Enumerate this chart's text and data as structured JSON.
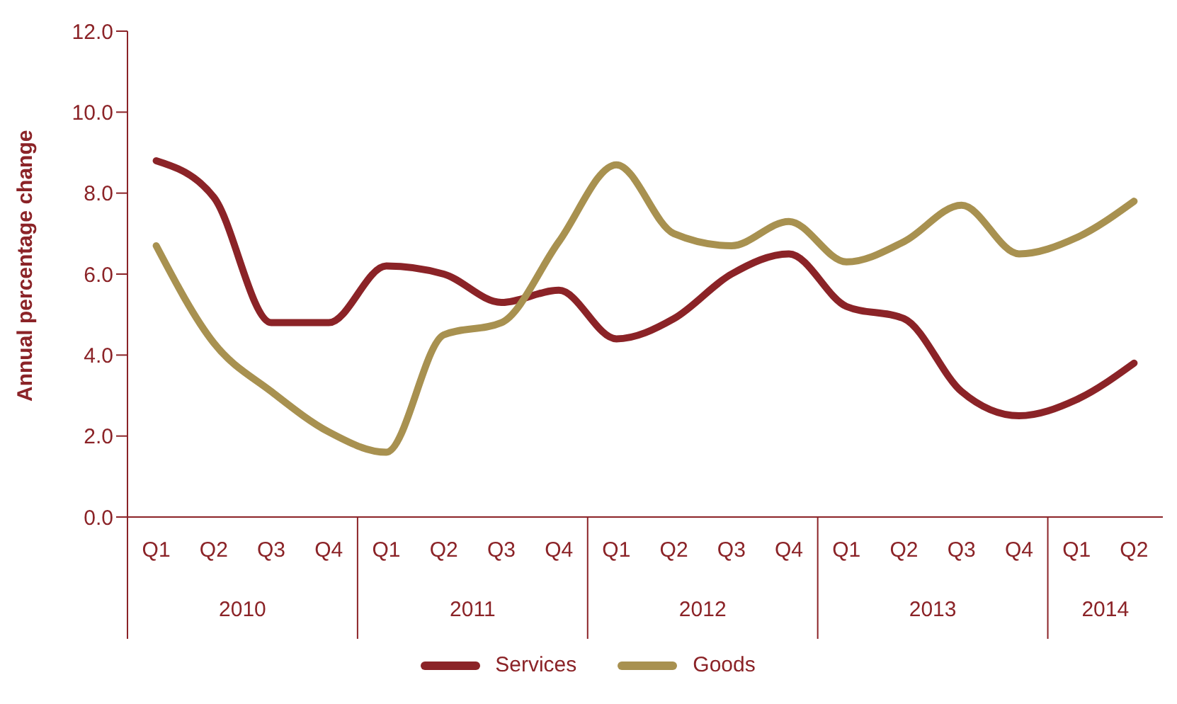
{
  "chart_data": {
    "type": "line",
    "ylabel": "Annual percentage change",
    "categories": [
      "Q1",
      "Q2",
      "Q3",
      "Q4",
      "Q1",
      "Q2",
      "Q3",
      "Q4",
      "Q1",
      "Q2",
      "Q3",
      "Q4",
      "Q1",
      "Q2",
      "Q3",
      "Q4",
      "Q1",
      "Q2"
    ],
    "annotations": [
      "2010",
      "2011",
      "2012",
      "2013",
      "2014"
    ],
    "series": [
      {
        "name": "Services",
        "color": "#8b2327",
        "values": [
          8.8,
          7.9,
          4.8,
          4.8,
          6.2,
          6.0,
          5.3,
          5.6,
          4.4,
          4.9,
          6.0,
          6.5,
          5.2,
          4.9,
          3.1,
          2.5,
          2.9,
          3.8
        ]
      },
      {
        "name": "Goods",
        "color": "#a89150",
        "values": [
          6.7,
          4.3,
          3.1,
          2.1,
          1.6,
          4.5,
          4.8,
          6.8,
          8.7,
          7.0,
          6.7,
          7.3,
          6.3,
          6.8,
          7.7,
          6.5,
          6.9,
          7.8
        ]
      }
    ],
    "ylim": [
      0,
      12
    ],
    "yticks": [
      {
        "value": 0,
        "label": "0.0"
      },
      {
        "value": 2,
        "label": "2.0"
      },
      {
        "value": 4,
        "label": "4.0"
      },
      {
        "value": 6,
        "label": "6.0"
      },
      {
        "value": 8,
        "label": "8.0"
      },
      {
        "value": 10,
        "label": "10.0"
      },
      {
        "value": 12,
        "label": "12.0"
      }
    ],
    "grid": false,
    "legend": "bottom",
    "marker": "none",
    "line_style": "solid"
  }
}
